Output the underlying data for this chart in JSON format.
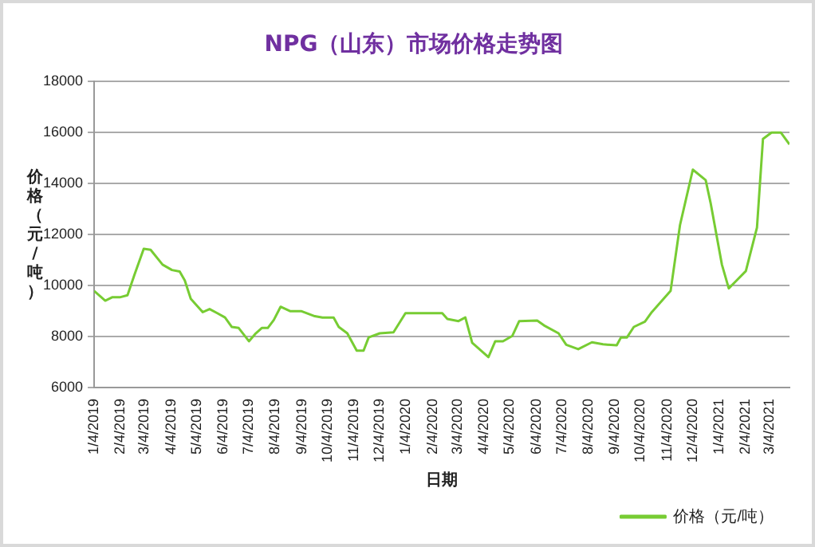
{
  "chart_data": {
    "type": "line",
    "title": "NPG（山东）市场价格走势图",
    "xlabel": "日期",
    "ylabel": "价格（元/吨）",
    "x": [
      "2019-01-04",
      "2019-01-17",
      "2019-01-25",
      "2019-02-03",
      "2019-02-12",
      "2019-02-20",
      "2019-03-03",
      "2019-03-11",
      "2019-03-25",
      "2019-04-05",
      "2019-04-14",
      "2019-04-20",
      "2019-04-27",
      "2019-05-11",
      "2019-05-19",
      "2019-05-28",
      "2019-06-06",
      "2019-06-14",
      "2019-06-22",
      "2019-07-04",
      "2019-07-12",
      "2019-07-19",
      "2019-07-26",
      "2019-08-02",
      "2019-08-10",
      "2019-08-21",
      "2019-09-03",
      "2019-09-19",
      "2019-09-28",
      "2019-10-11",
      "2019-10-17",
      "2019-10-27",
      "2019-11-07",
      "2019-11-15",
      "2019-11-21",
      "2019-12-04",
      "2019-12-20",
      "2020-01-03",
      "2020-01-14",
      "2020-02-15",
      "2020-02-21",
      "2020-03-05",
      "2020-03-13",
      "2020-03-21",
      "2020-04-09",
      "2020-04-17",
      "2020-04-26",
      "2020-05-07",
      "2020-05-15",
      "2020-06-05",
      "2020-06-13",
      "2020-06-30",
      "2020-07-09",
      "2020-07-23",
      "2020-08-08",
      "2020-08-21",
      "2020-09-06",
      "2020-09-11",
      "2020-09-18",
      "2020-09-26",
      "2020-10-09",
      "2020-10-17",
      "2020-11-08",
      "2020-11-19",
      "2020-12-04",
      "2020-12-19",
      "2020-12-25",
      "2021-01-07",
      "2021-01-15",
      "2021-01-23",
      "2021-02-04",
      "2021-02-17",
      "2021-02-24",
      "2021-03-06",
      "2021-03-17",
      "2021-03-27"
    ],
    "series": [
      {
        "name": "价格（元/吨）",
        "color": "#77cc33",
        "values": [
          9780,
          9400,
          9530,
          9530,
          9610,
          10400,
          11430,
          11390,
          10810,
          10600,
          10540,
          10190,
          9470,
          8950,
          9070,
          8910,
          8740,
          8370,
          8330,
          7810,
          8120,
          8330,
          8330,
          8640,
          9160,
          8990,
          8990,
          8790,
          8740,
          8740,
          8370,
          8120,
          7440,
          7440,
          7960,
          8120,
          8160,
          8910,
          8910,
          8910,
          8680,
          8600,
          8740,
          7750,
          7190,
          7810,
          7810,
          8020,
          8600,
          8620,
          8430,
          8120,
          7670,
          7500,
          7770,
          7690,
          7650,
          7960,
          7960,
          8370,
          8580,
          8950,
          9780,
          12360,
          14530,
          14120,
          13190,
          10810,
          9880,
          10150,
          10560,
          12260,
          15730,
          15980,
          15980,
          15520
        ]
      }
    ],
    "xlim": [
      "2019-01-04",
      "2021-03-27"
    ],
    "xticks": [
      {
        "value": "2019-01-04",
        "label": "1/4/2019"
      },
      {
        "value": "2019-02-04",
        "label": "2/4/2019"
      },
      {
        "value": "2019-03-04",
        "label": "3/4/2019"
      },
      {
        "value": "2019-04-04",
        "label": "4/4/2019"
      },
      {
        "value": "2019-05-04",
        "label": "5/4/2019"
      },
      {
        "value": "2019-06-04",
        "label": "6/4/2019"
      },
      {
        "value": "2019-07-04",
        "label": "7/4/2019"
      },
      {
        "value": "2019-08-04",
        "label": "8/4/2019"
      },
      {
        "value": "2019-09-04",
        "label": "9/4/2019"
      },
      {
        "value": "2019-10-04",
        "label": "10/4/2019"
      },
      {
        "value": "2019-11-04",
        "label": "11/4/2019"
      },
      {
        "value": "2019-12-04",
        "label": "12/4/2019"
      },
      {
        "value": "2020-01-04",
        "label": "1/4/2020"
      },
      {
        "value": "2020-02-04",
        "label": "2/4/2020"
      },
      {
        "value": "2020-03-04",
        "label": "3/4/2020"
      },
      {
        "value": "2020-04-04",
        "label": "4/4/2020"
      },
      {
        "value": "2020-05-04",
        "label": "5/4/2020"
      },
      {
        "value": "2020-06-04",
        "label": "6/4/2020"
      },
      {
        "value": "2020-07-04",
        "label": "7/4/2020"
      },
      {
        "value": "2020-08-04",
        "label": "8/4/2020"
      },
      {
        "value": "2020-09-04",
        "label": "9/4/2020"
      },
      {
        "value": "2020-10-04",
        "label": "10/4/2020"
      },
      {
        "value": "2020-11-04",
        "label": "11/4/2020"
      },
      {
        "value": "2020-12-04",
        "label": "12/4/2020"
      },
      {
        "value": "2021-01-04",
        "label": "1/4/2021"
      },
      {
        "value": "2021-02-04",
        "label": "2/4/2021"
      },
      {
        "value": "2021-03-04",
        "label": "3/4/2021"
      }
    ],
    "ylim": [
      6000,
      18000
    ],
    "yticks": [
      6000,
      8000,
      10000,
      12000,
      14000,
      16000,
      18000
    ],
    "grid": "y",
    "legend": "bottom right",
    "marker": "none",
    "line_style": "solid"
  }
}
